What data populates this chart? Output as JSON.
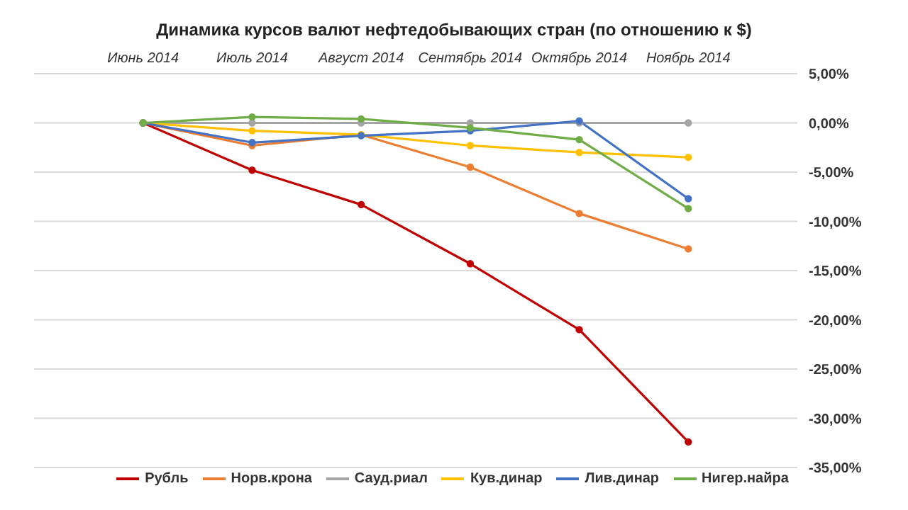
{
  "chart_data": {
    "type": "line",
    "title": "Динамика курсов валют нефтедобывающих стран (по отношению к $)",
    "categories": [
      "Июнь 2014",
      "Июль 2014",
      "Август 2014",
      "Сентябрь 2014",
      "Октябрь 2014",
      "Ноябрь 2014"
    ],
    "series": [
      {
        "name": "Рубль",
        "color": "#c00000",
        "values": [
          0,
          -4.8,
          -8.3,
          -14.3,
          -21,
          -32.4
        ]
      },
      {
        "name": "Норв.крона",
        "color": "#ed7d31",
        "values": [
          0,
          -2.3,
          -1.2,
          -4.5,
          -9.2,
          -12.8
        ]
      },
      {
        "name": "Сауд.риал",
        "color": "#a5a5a5",
        "values": [
          0,
          0,
          0,
          0,
          0,
          0
        ]
      },
      {
        "name": "Кув.динар",
        "color": "#ffc000",
        "values": [
          0,
          -0.8,
          -1.2,
          -2.3,
          -3,
          -3.5
        ]
      },
      {
        "name": "Лив.динар",
        "color": "#4472c4",
        "values": [
          0,
          -2,
          -1.3,
          -0.8,
          0.2,
          -7.7
        ]
      },
      {
        "name": "Нигер.найра",
        "color": "#70ad47",
        "values": [
          0,
          0.6,
          0.4,
          -0.5,
          -1.7,
          -8.7
        ]
      }
    ],
    "ylim": [
      -35,
      5
    ],
    "yticks": [
      {
        "value": 5,
        "label": "5,00%"
      },
      {
        "value": 0,
        "label": "0,00%"
      },
      {
        "value": -5,
        "label": "-5,00%"
      },
      {
        "value": -10,
        "label": "-10,00%"
      },
      {
        "value": -15,
        "label": "-15,00%"
      },
      {
        "value": -20,
        "label": "-20,00%"
      },
      {
        "value": -25,
        "label": "-25,00%"
      },
      {
        "value": -30,
        "label": "-30,00%"
      },
      {
        "value": -35,
        "label": "-35,00%"
      }
    ],
    "grid": "y",
    "legend": "bottom",
    "marker": "circle",
    "line_style": "solid"
  }
}
